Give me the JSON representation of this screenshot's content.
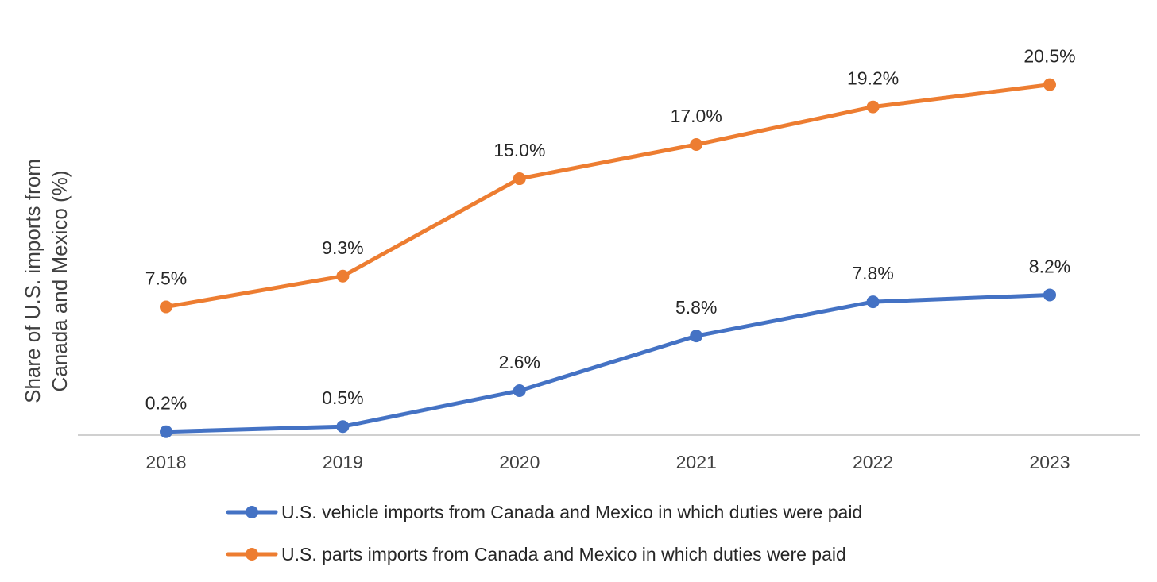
{
  "colors": {
    "vehicle_series": "#4472C4",
    "parts_series": "#ED7D31",
    "axis_line": "#D0D0D0",
    "text": "#404040",
    "background": "#FFFFFF"
  },
  "chart_data": {
    "type": "line",
    "title": "",
    "xlabel": "",
    "ylabel_lines": [
      "Share of U.S. imports from",
      "Canada and Mexico (%)"
    ],
    "ylim": [
      0,
      25
    ],
    "grid": false,
    "legend_position": "bottom",
    "categories": [
      "2018",
      "2019",
      "2020",
      "2021",
      "2022",
      "2023"
    ],
    "series": [
      {
        "name": "U.S. vehicle imports from Canada and Mexico in which duties were paid",
        "color": "#4472C4",
        "values": [
          0.2,
          0.5,
          2.6,
          5.8,
          7.8,
          8.2
        ],
        "labels": [
          "0.2%",
          "0.5%",
          "2.6%",
          "5.8%",
          "7.8%",
          "8.2%"
        ]
      },
      {
        "name": "U.S. parts imports from Canada and Mexico in which duties were paid",
        "color": "#ED7D31",
        "values": [
          7.5,
          9.3,
          15.0,
          17.0,
          19.2,
          20.5
        ],
        "labels": [
          "7.5%",
          "9.3%",
          "15.0%",
          "17.0%",
          "19.2%",
          "20.5%"
        ]
      }
    ]
  }
}
